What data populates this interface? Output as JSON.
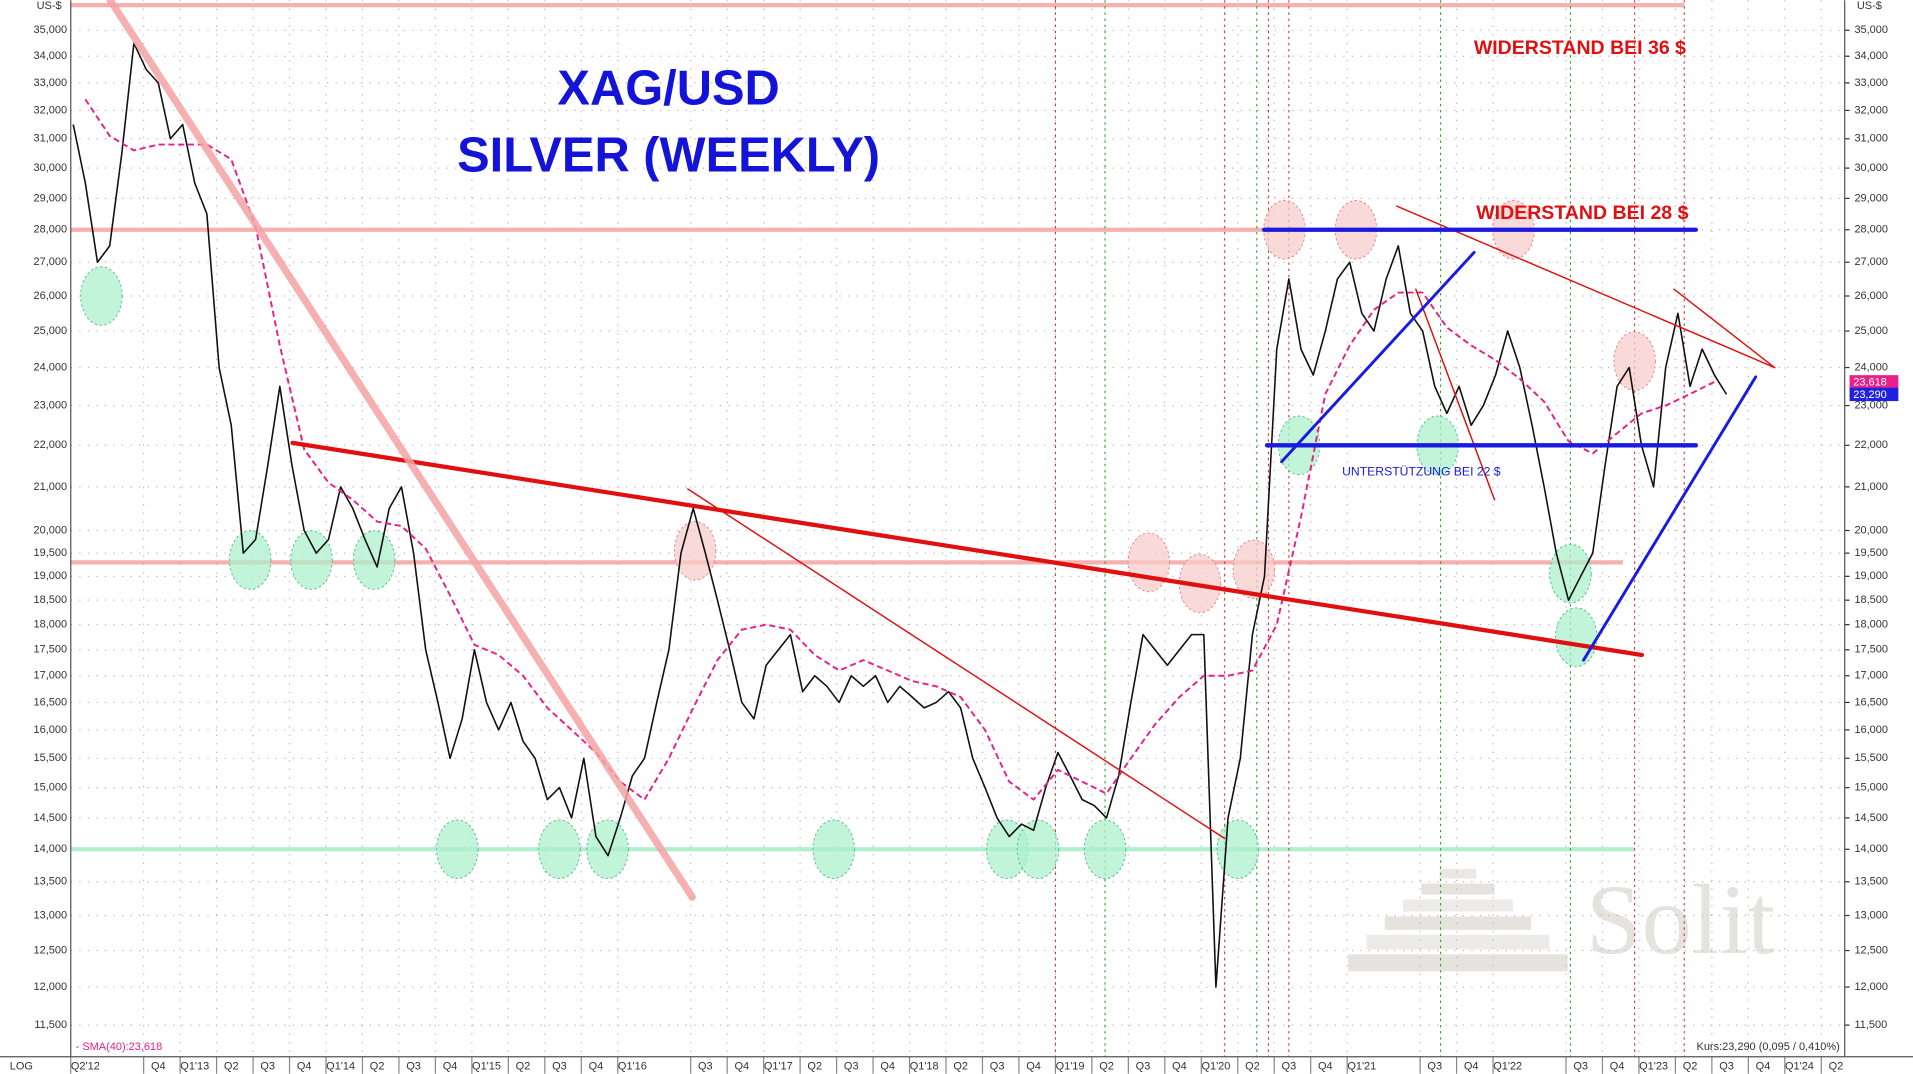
{
  "chart_data": {
    "type": "line",
    "title": "XAG/USD",
    "subtitle": "SILVER (WEEKLY)",
    "y_unit": "US-$",
    "scale_label": "LOG",
    "log_scale": true,
    "grid": true,
    "xlim": [
      2012.15,
      2024.31
    ],
    "ylim": [
      11.1,
      36.2
    ],
    "xticks": [
      {
        "value": 2012.25,
        "label": "Q2'12"
      },
      {
        "value": 2012.75,
        "label": "Q4"
      },
      {
        "value": 2013,
        "label": "Q1'13"
      },
      {
        "value": 2013.25,
        "label": "Q2"
      },
      {
        "value": 2013.5,
        "label": "Q3"
      },
      {
        "value": 2013.75,
        "label": "Q4"
      },
      {
        "value": 2014,
        "label": "Q1'14"
      },
      {
        "value": 2014.25,
        "label": "Q2"
      },
      {
        "value": 2014.5,
        "label": "Q3"
      },
      {
        "value": 2014.75,
        "label": "Q4"
      },
      {
        "value": 2015,
        "label": "Q1'15"
      },
      {
        "value": 2015.25,
        "label": "Q2"
      },
      {
        "value": 2015.5,
        "label": "Q3"
      },
      {
        "value": 2015.75,
        "label": "Q4"
      },
      {
        "value": 2016,
        "label": "Q1'16"
      },
      {
        "value": 2016.5,
        "label": "Q3"
      },
      {
        "value": 2016.75,
        "label": "Q4"
      },
      {
        "value": 2017,
        "label": "Q1'17"
      },
      {
        "value": 2017.25,
        "label": "Q2"
      },
      {
        "value": 2017.5,
        "label": "Q3"
      },
      {
        "value": 2017.75,
        "label": "Q4"
      },
      {
        "value": 2018,
        "label": "Q1'18"
      },
      {
        "value": 2018.25,
        "label": "Q2"
      },
      {
        "value": 2018.5,
        "label": "Q3"
      },
      {
        "value": 2018.75,
        "label": "Q4"
      },
      {
        "value": 2019,
        "label": "Q1'19"
      },
      {
        "value": 2019.25,
        "label": "Q2"
      },
      {
        "value": 2019.5,
        "label": "Q3"
      },
      {
        "value": 2019.75,
        "label": "Q4"
      },
      {
        "value": 2020,
        "label": "Q1'20"
      },
      {
        "value": 2020.25,
        "label": "Q2"
      },
      {
        "value": 2020.5,
        "label": "Q3"
      },
      {
        "value": 2020.75,
        "label": "Q4"
      },
      {
        "value": 2021,
        "label": "Q1'21"
      },
      {
        "value": 2021.5,
        "label": "Q3"
      },
      {
        "value": 2021.75,
        "label": "Q4"
      },
      {
        "value": 2022,
        "label": "Q1'22"
      },
      {
        "value": 2022.5,
        "label": "Q3"
      },
      {
        "value": 2022.75,
        "label": "Q4"
      },
      {
        "value": 2023,
        "label": "Q1'23"
      },
      {
        "value": 2023.25,
        "label": "Q2"
      },
      {
        "value": 2023.5,
        "label": "Q3"
      },
      {
        "value": 2023.75,
        "label": "Q4"
      },
      {
        "value": 2024,
        "label": "Q1'24"
      },
      {
        "value": 2024.25,
        "label": "Q2"
      }
    ],
    "yticks": [
      {
        "value": 11.5,
        "label": "11,500"
      },
      {
        "value": 12,
        "label": "12,000"
      },
      {
        "value": 12.5,
        "label": "12,500"
      },
      {
        "value": 13,
        "label": "13,000"
      },
      {
        "value": 13.5,
        "label": "13,500"
      },
      {
        "value": 14,
        "label": "14,000"
      },
      {
        "value": 14.5,
        "label": "14,500"
      },
      {
        "value": 15,
        "label": "15,000"
      },
      {
        "value": 15.5,
        "label": "15,500"
      },
      {
        "value": 16,
        "label": "16,000"
      },
      {
        "value": 16.5,
        "label": "16,500"
      },
      {
        "value": 17,
        "label": "17,000"
      },
      {
        "value": 17.5,
        "label": "17,500"
      },
      {
        "value": 18,
        "label": "18,000"
      },
      {
        "value": 18.5,
        "label": "18,500"
      },
      {
        "value": 19,
        "label": "19,000"
      },
      {
        "value": 19.5,
        "label": "19,500"
      },
      {
        "value": 20,
        "label": "20,000"
      },
      {
        "value": 21,
        "label": "21,000"
      },
      {
        "value": 22,
        "label": "22,000"
      },
      {
        "value": 23,
        "label": "23,000"
      },
      {
        "value": 24,
        "label": "24,000"
      },
      {
        "value": 25,
        "label": "25,000"
      },
      {
        "value": 26,
        "label": "26,000"
      },
      {
        "value": 27,
        "label": "27,000"
      },
      {
        "value": 28,
        "label": "28,000"
      },
      {
        "value": 29,
        "label": "29,000"
      },
      {
        "value": 30,
        "label": "30,000"
      },
      {
        "value": 31,
        "label": "31,000"
      },
      {
        "value": 32,
        "label": "32,000"
      },
      {
        "value": 33,
        "label": "33,000"
      },
      {
        "value": 34,
        "label": "34,000"
      },
      {
        "value": 35,
        "label": "35,000"
      }
    ],
    "series": [
      {
        "color": "#111111",
        "x": [
          2012.167,
          2012.25,
          2012.333,
          2012.417,
          2012.5,
          2012.583,
          2012.667,
          2012.75,
          2012.833,
          2012.917,
          2013.0,
          2013.083,
          2013.167,
          2013.25,
          2013.333,
          2013.417,
          2013.5,
          2013.583,
          2013.667,
          2013.75,
          2013.833,
          2013.917,
          2014.0,
          2014.083,
          2014.167,
          2014.25,
          2014.333,
          2014.417,
          2014.5,
          2014.583,
          2014.667,
          2014.75,
          2014.833,
          2014.917,
          2015.0,
          2015.083,
          2015.167,
          2015.25,
          2015.333,
          2015.417,
          2015.5,
          2015.583,
          2015.667,
          2015.75,
          2015.833,
          2015.917,
          2016.0,
          2016.083,
          2016.167,
          2016.25,
          2016.333,
          2016.417,
          2016.5,
          2016.583,
          2016.667,
          2016.75,
          2016.833,
          2016.917,
          2017.0,
          2017.083,
          2017.167,
          2017.25,
          2017.333,
          2017.417,
          2017.5,
          2017.583,
          2017.667,
          2017.75,
          2017.833,
          2017.917,
          2018.0,
          2018.083,
          2018.167,
          2018.25,
          2018.333,
          2018.417,
          2018.5,
          2018.583,
          2018.667,
          2018.75,
          2018.833,
          2018.917,
          2019.0,
          2019.083,
          2019.167,
          2019.25,
          2019.333,
          2019.417,
          2019.5,
          2019.583,
          2019.667,
          2019.75,
          2019.833,
          2019.917,
          2020.0,
          2020.083,
          2020.167,
          2020.25,
          2020.333,
          2020.417,
          2020.5,
          2020.583,
          2020.667,
          2020.75,
          2020.833,
          2020.917,
          2021.0,
          2021.083,
          2021.167,
          2021.25,
          2021.333,
          2021.417,
          2021.5,
          2021.583,
          2021.667,
          2021.75,
          2021.833,
          2021.917,
          2022.0,
          2022.083,
          2022.167,
          2022.25,
          2022.333,
          2022.417,
          2022.5,
          2022.583,
          2022.667,
          2022.75,
          2022.833,
          2022.917,
          2023.0,
          2023.083,
          2023.167,
          2023.25,
          2023.333,
          2023.417,
          2023.5
        ],
        "values": [
          31.5,
          29.5,
          27.0,
          27.5,
          30.5,
          34.5,
          33.5,
          33.0,
          31.0,
          31.5,
          29.5,
          28.5,
          24.0,
          22.5,
          19.5,
          19.8,
          21.5,
          23.5,
          21.5,
          20.0,
          19.5,
          19.8,
          21.0,
          20.5,
          19.8,
          19.2,
          20.5,
          21.0,
          19.5,
          17.5,
          16.5,
          15.5,
          16.2,
          17.5,
          16.5,
          16.0,
          16.5,
          15.8,
          15.5,
          14.8,
          15.0,
          14.5,
          15.5,
          14.2,
          13.9,
          14.5,
          15.2,
          15.5,
          16.5,
          17.5,
          19.5,
          20.5,
          19.5,
          18.5,
          17.5,
          16.5,
          16.2,
          17.2,
          17.5,
          17.8,
          16.7,
          17.0,
          16.8,
          16.5,
          17.0,
          16.8,
          17.0,
          16.5,
          16.8,
          16.6,
          16.4,
          16.5,
          16.7,
          16.4,
          15.5,
          15.0,
          14.5,
          14.2,
          14.4,
          14.3,
          15.0,
          15.6,
          15.2,
          14.8,
          14.7,
          14.5,
          15.2,
          16.5,
          17.8,
          17.5,
          17.2,
          17.5,
          17.8,
          17.8,
          12.0,
          14.5,
          15.5,
          17.8,
          19.0,
          24.5,
          26.5,
          24.5,
          23.8,
          25.0,
          26.5,
          27.0,
          25.5,
          25.0,
          26.5,
          27.5,
          25.5,
          25.0,
          23.5,
          22.8,
          23.5,
          22.5,
          23.0,
          23.8,
          25.0,
          24.0,
          22.5,
          21.0,
          19.5,
          18.5,
          19.0,
          19.5,
          21.5,
          23.5,
          24.0,
          22.0,
          21.0,
          24.0,
          25.5,
          23.5,
          24.5,
          23.8,
          23.29
        ]
      },
      {
        "name": "- SMA(40):23,618",
        "color": "#e8208a",
        "dashed": true,
        "x": [
          2012.25,
          2012.417,
          2012.583,
          2012.75,
          2012.917,
          2013.083,
          2013.25,
          2013.417,
          2013.583,
          2013.75,
          2013.917,
          2014.083,
          2014.25,
          2014.417,
          2014.583,
          2014.75,
          2014.917,
          2015.083,
          2015.25,
          2015.417,
          2015.583,
          2015.75,
          2015.917,
          2016.083,
          2016.25,
          2016.417,
          2016.583,
          2016.75,
          2016.917,
          2017.083,
          2017.25,
          2017.417,
          2017.583,
          2017.75,
          2017.917,
          2018.083,
          2018.25,
          2018.417,
          2018.583,
          2018.75,
          2018.917,
          2019.083,
          2019.25,
          2019.417,
          2019.583,
          2019.75,
          2019.917,
          2020.083,
          2020.25,
          2020.417,
          2020.583,
          2020.75,
          2020.917,
          2021.083,
          2021.25,
          2021.417,
          2021.583,
          2021.75,
          2021.917,
          2022.083,
          2022.25,
          2022.417,
          2022.583,
          2022.75,
          2022.917,
          2023.083,
          2023.25,
          2023.417
        ],
        "values": [
          32.4,
          31.1,
          30.6,
          30.8,
          30.8,
          30.8,
          30.3,
          28.1,
          24.6,
          21.9,
          21.1,
          20.7,
          20.2,
          20.1,
          19.6,
          18.6,
          17.6,
          17.4,
          17.0,
          16.4,
          16.0,
          15.6,
          15.1,
          14.8,
          15.5,
          16.4,
          17.3,
          17.9,
          18.0,
          17.9,
          17.4,
          17.1,
          17.3,
          17.1,
          16.9,
          16.8,
          16.6,
          16.0,
          15.1,
          14.8,
          15.3,
          15.1,
          14.9,
          15.5,
          16.1,
          16.6,
          17.0,
          17.0,
          17.1,
          18.0,
          20.3,
          23.3,
          24.6,
          25.6,
          26.1,
          26.1,
          25.1,
          24.6,
          24.2,
          23.7,
          23.1,
          22.1,
          21.8,
          22.3,
          22.8,
          23.0,
          23.3,
          23.618
        ]
      }
    ],
    "levels": [
      {
        "value": 36,
        "x": [
          2012.15,
          2023.21
        ],
        "color": "#f5b0b0"
      },
      {
        "value": 28,
        "x": [
          2012.15,
          2023.21
        ],
        "color": "#f5b0b0"
      },
      {
        "value": 19.3,
        "x": [
          2012.15,
          2022.79
        ],
        "color": "#f5b0b0"
      },
      {
        "value": 14,
        "x": [
          2012.15,
          2022.87
        ],
        "color": "#b0f0cf"
      }
    ],
    "trendlines": [
      {
        "x": [
          2013.67,
          2022.92
        ],
        "y": [
          22.06,
          17.4
        ],
        "color": "#e01010",
        "style": "thick"
      },
      {
        "x": [
          2012.42,
          2016.41
        ],
        "y": [
          36.2,
          13.27
        ],
        "color": "#f4a4a4",
        "style": "broad"
      },
      {
        "x": [
          2016.38,
          2020.06
        ],
        "y": [
          20.95,
          14.17
        ],
        "color": "#e01010",
        "style": "thin"
      },
      {
        "x": [
          2021.24,
          2023.83
        ],
        "y": [
          28.75,
          24.0
        ],
        "color": "#e01010",
        "style": "thin"
      },
      {
        "x": [
          2023.14,
          2023.83
        ],
        "y": [
          26.2,
          24.0
        ],
        "color": "#e01010",
        "style": "thin"
      },
      {
        "x": [
          2021.37,
          2021.91
        ],
        "y": [
          26.2,
          20.7
        ],
        "color": "#e01010",
        "style": "thin"
      },
      {
        "x": [
          2020.33,
          2023.29
        ],
        "y": [
          28,
          28
        ],
        "color": "#1a1ae0",
        "style": "thick"
      },
      {
        "x": [
          2020.35,
          2023.29
        ],
        "y": [
          22,
          22
        ],
        "color": "#1a1ae0",
        "style": "thick"
      },
      {
        "x": [
          2020.45,
          2021.77
        ],
        "y": [
          21.6,
          27.3
        ],
        "color": "#1a1ae0",
        "style": "medium"
      },
      {
        "x": [
          2022.52,
          2023.7
        ],
        "y": [
          17.3,
          23.75
        ],
        "color": "#1a1ae0",
        "style": "medium"
      }
    ],
    "highlights": [
      {
        "x": 2012.36,
        "y": 26.0,
        "color": "#aef0cc"
      },
      {
        "x": 2013.38,
        "y": 19.35,
        "color": "#aef0cc"
      },
      {
        "x": 2013.8,
        "y": 19.35,
        "color": "#aef0cc"
      },
      {
        "x": 2014.23,
        "y": 19.35,
        "color": "#aef0cc"
      },
      {
        "x": 2014.8,
        "y": 14.0,
        "color": "#aef0cc"
      },
      {
        "x": 2015.5,
        "y": 14.0,
        "color": "#aef0cc"
      },
      {
        "x": 2015.83,
        "y": 14.0,
        "color": "#aef0cc"
      },
      {
        "x": 2017.38,
        "y": 14.0,
        "color": "#aef0cc"
      },
      {
        "x": 2018.57,
        "y": 14.0,
        "color": "#aef0cc"
      },
      {
        "x": 2018.78,
        "y": 14.0,
        "color": "#aef0cc"
      },
      {
        "x": 2019.24,
        "y": 14.0,
        "color": "#aef0cc"
      },
      {
        "x": 2020.15,
        "y": 14.0,
        "color": "#aef0cc"
      },
      {
        "x": 2020.57,
        "y": 22.0,
        "color": "#aef0cc"
      },
      {
        "x": 2021.52,
        "y": 22.0,
        "color": "#aef0cc"
      },
      {
        "x": 2022.43,
        "y": 19.06,
        "color": "#aef0cc"
      },
      {
        "x": 2022.47,
        "y": 17.75,
        "color": "#aef0cc"
      },
      {
        "x": 2016.43,
        "y": 19.55,
        "color": "#f8cccc"
      },
      {
        "x": 2019.54,
        "y": 19.3,
        "color": "#f8cccc"
      },
      {
        "x": 2019.89,
        "y": 18.85,
        "color": "#f8cccc"
      },
      {
        "x": 2020.26,
        "y": 19.15,
        "color": "#f8cccc"
      },
      {
        "x": 2020.47,
        "y": 28.0,
        "color": "#f8cccc"
      },
      {
        "x": 2020.96,
        "y": 28.0,
        "color": "#f8cccc"
      },
      {
        "x": 2022.04,
        "y": 28.0,
        "color": "#f8cccc"
      },
      {
        "x": 2022.87,
        "y": 24.17,
        "color": "#f8cccc"
      }
    ],
    "vlines": [
      {
        "x": 2018.9,
        "color": "#e03030"
      },
      {
        "x": 2020.06,
        "color": "#e03030"
      },
      {
        "x": 2020.36,
        "color": "#e03030"
      },
      {
        "x": 2020.5,
        "color": "#e03030"
      },
      {
        "x": 2022.87,
        "color": "#e03030"
      },
      {
        "x": 2023.21,
        "color": "#e03030"
      },
      {
        "x": 2019.24,
        "color": "#30a030"
      },
      {
        "x": 2020.28,
        "color": "#30a030"
      },
      {
        "x": 2021.54,
        "color": "#30a030"
      },
      {
        "x": 2022.43,
        "color": "#30a030"
      }
    ],
    "annotations": [
      "WIDERSTAND BEI 36 $",
      "WIDERSTAND BEI 28 $",
      "UNTERSTÜTZUNG BEI 22 $"
    ],
    "last_price": {
      "value": 23.29,
      "label": "23,290"
    },
    "last_sma": {
      "value": 23.618,
      "label": "23,618"
    },
    "quote": "Kurs:23,290 (0,095 / 0,410%)",
    "watermark": "Solit"
  }
}
